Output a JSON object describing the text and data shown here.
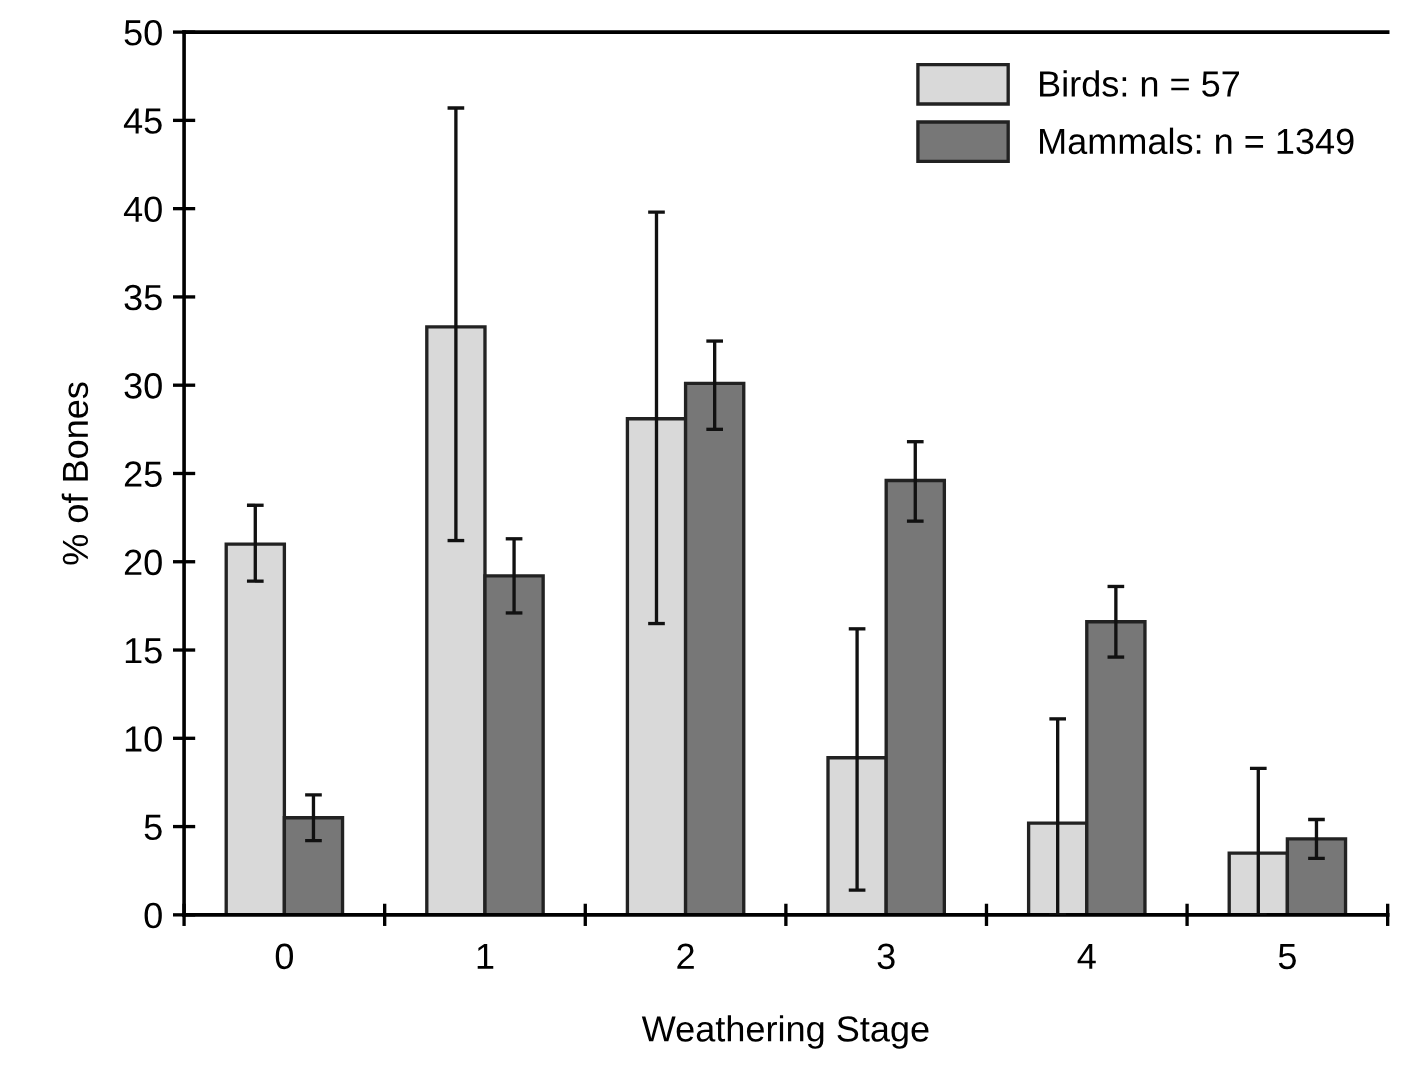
{
  "chart_data": {
    "type": "bar",
    "xlabel": "Weathering Stage",
    "ylabel": "% of Bones",
    "categories": [
      "0",
      "1",
      "2",
      "3",
      "4",
      "5"
    ],
    "series": [
      {
        "name": "Birds: n = 57",
        "color": "#d9d9d9",
        "values": [
          21.0,
          33.3,
          28.1,
          8.9,
          5.2,
          3.5
        ],
        "errors": [
          [
            18.9,
            23.2
          ],
          [
            21.2,
            45.7
          ],
          [
            16.5,
            39.8
          ],
          [
            1.4,
            16.2
          ],
          [
            0,
            11.1
          ],
          [
            0,
            8.3
          ]
        ]
      },
      {
        "name": "Mammals: n = 1349",
        "color": "#777777",
        "values": [
          5.5,
          19.2,
          30.1,
          24.6,
          16.6,
          4.3
        ],
        "errors": [
          [
            4.2,
            6.8
          ],
          [
            17.1,
            21.3
          ],
          [
            27.5,
            32.5
          ],
          [
            22.3,
            26.8
          ],
          [
            14.6,
            18.6
          ],
          [
            3.2,
            5.4
          ]
        ]
      }
    ],
    "ylim": [
      0,
      50
    ],
    "yticks": [
      0,
      5,
      10,
      15,
      20,
      25,
      30,
      35,
      40,
      45,
      50
    ],
    "grid": false,
    "legend": "top right"
  }
}
